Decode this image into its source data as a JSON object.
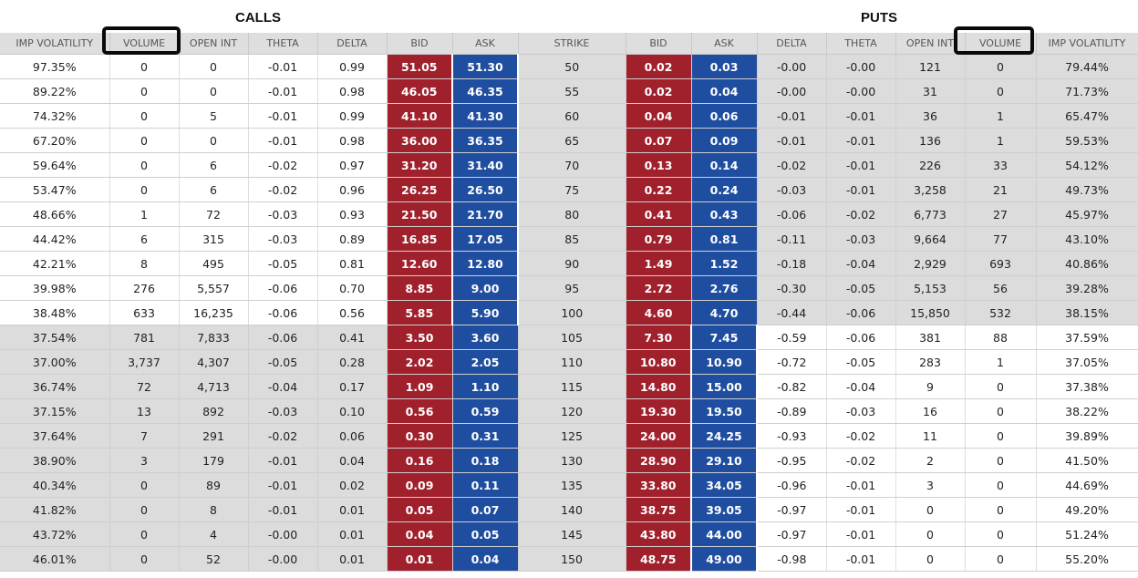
{
  "calls_title": "CALLS",
  "puts_title": "PUTS",
  "headers": [
    "IMP VOLATILITY",
    "VOLUME",
    "OPEN INT",
    "THETA",
    "DELTA",
    "BID",
    "ASK",
    "STRIKE",
    "BID",
    "ASK",
    "DELTA",
    "THETA",
    "OPEN INT",
    "VOLUME",
    "IMP VOLATILITY"
  ],
  "colors": {
    "bid": "#a0202c",
    "ask": "#1f4ea0",
    "shade": "#dcdcdc"
  },
  "rows": [
    [
      "97.35%",
      "0",
      "0",
      "-0.01",
      "0.99",
      "51.05",
      "51.30",
      "50",
      "0.02",
      "0.03",
      "-0.00",
      "-0.00",
      "121",
      "0",
      "79.44%"
    ],
    [
      "89.22%",
      "0",
      "0",
      "-0.01",
      "0.98",
      "46.05",
      "46.35",
      "55",
      "0.02",
      "0.04",
      "-0.00",
      "-0.00",
      "31",
      "0",
      "71.73%"
    ],
    [
      "74.32%",
      "0",
      "5",
      "-0.01",
      "0.99",
      "41.10",
      "41.30",
      "60",
      "0.04",
      "0.06",
      "-0.01",
      "-0.01",
      "36",
      "1",
      "65.47%"
    ],
    [
      "67.20%",
      "0",
      "0",
      "-0.01",
      "0.98",
      "36.00",
      "36.35",
      "65",
      "0.07",
      "0.09",
      "-0.01",
      "-0.01",
      "136",
      "1",
      "59.53%"
    ],
    [
      "59.64%",
      "0",
      "6",
      "-0.02",
      "0.97",
      "31.20",
      "31.40",
      "70",
      "0.13",
      "0.14",
      "-0.02",
      "-0.01",
      "226",
      "33",
      "54.12%"
    ],
    [
      "53.47%",
      "0",
      "6",
      "-0.02",
      "0.96",
      "26.25",
      "26.50",
      "75",
      "0.22",
      "0.24",
      "-0.03",
      "-0.01",
      "3,258",
      "21",
      "49.73%"
    ],
    [
      "48.66%",
      "1",
      "72",
      "-0.03",
      "0.93",
      "21.50",
      "21.70",
      "80",
      "0.41",
      "0.43",
      "-0.06",
      "-0.02",
      "6,773",
      "27",
      "45.97%"
    ],
    [
      "44.42%",
      "6",
      "315",
      "-0.03",
      "0.89",
      "16.85",
      "17.05",
      "85",
      "0.79",
      "0.81",
      "-0.11",
      "-0.03",
      "9,664",
      "77",
      "43.10%"
    ],
    [
      "42.21%",
      "8",
      "495",
      "-0.05",
      "0.81",
      "12.60",
      "12.80",
      "90",
      "1.49",
      "1.52",
      "-0.18",
      "-0.04",
      "2,929",
      "693",
      "40.86%"
    ],
    [
      "39.98%",
      "276",
      "5,557",
      "-0.06",
      "0.70",
      "8.85",
      "9.00",
      "95",
      "2.72",
      "2.76",
      "-0.30",
      "-0.05",
      "5,153",
      "56",
      "39.28%"
    ],
    [
      "38.48%",
      "633",
      "16,235",
      "-0.06",
      "0.56",
      "5.85",
      "5.90",
      "100",
      "4.60",
      "4.70",
      "-0.44",
      "-0.06",
      "15,850",
      "532",
      "38.15%"
    ],
    [
      "37.54%",
      "781",
      "7,833",
      "-0.06",
      "0.41",
      "3.50",
      "3.60",
      "105",
      "7.30",
      "7.45",
      "-0.59",
      "-0.06",
      "381",
      "88",
      "37.59%"
    ],
    [
      "37.00%",
      "3,737",
      "4,307",
      "-0.05",
      "0.28",
      "2.02",
      "2.05",
      "110",
      "10.80",
      "10.90",
      "-0.72",
      "-0.05",
      "283",
      "1",
      "37.05%"
    ],
    [
      "36.74%",
      "72",
      "4,713",
      "-0.04",
      "0.17",
      "1.09",
      "1.10",
      "115",
      "14.80",
      "15.00",
      "-0.82",
      "-0.04",
      "9",
      "0",
      "37.38%"
    ],
    [
      "37.15%",
      "13",
      "892",
      "-0.03",
      "0.10",
      "0.56",
      "0.59",
      "120",
      "19.30",
      "19.50",
      "-0.89",
      "-0.03",
      "16",
      "0",
      "38.22%"
    ],
    [
      "37.64%",
      "7",
      "291",
      "-0.02",
      "0.06",
      "0.30",
      "0.31",
      "125",
      "24.00",
      "24.25",
      "-0.93",
      "-0.02",
      "11",
      "0",
      "39.89%"
    ],
    [
      "38.90%",
      "3",
      "179",
      "-0.01",
      "0.04",
      "0.16",
      "0.18",
      "130",
      "28.90",
      "29.10",
      "-0.95",
      "-0.02",
      "2",
      "0",
      "41.50%"
    ],
    [
      "40.34%",
      "0",
      "89",
      "-0.01",
      "0.02",
      "0.09",
      "0.11",
      "135",
      "33.80",
      "34.05",
      "-0.96",
      "-0.01",
      "3",
      "0",
      "44.69%"
    ],
    [
      "41.82%",
      "0",
      "8",
      "-0.01",
      "0.01",
      "0.05",
      "0.07",
      "140",
      "38.75",
      "39.05",
      "-0.97",
      "-0.01",
      "0",
      "0",
      "49.20%"
    ],
    [
      "43.72%",
      "0",
      "4",
      "-0.00",
      "0.01",
      "0.04",
      "0.05",
      "145",
      "43.80",
      "44.00",
      "-0.97",
      "-0.01",
      "0",
      "0",
      "51.24%"
    ],
    [
      "46.01%",
      "0",
      "52",
      "-0.00",
      "0.01",
      "0.01",
      "0.04",
      "150",
      "48.75",
      "49.00",
      "-0.98",
      "-0.01",
      "0",
      "0",
      "55.20%"
    ]
  ],
  "itm_call_rows": 11
}
